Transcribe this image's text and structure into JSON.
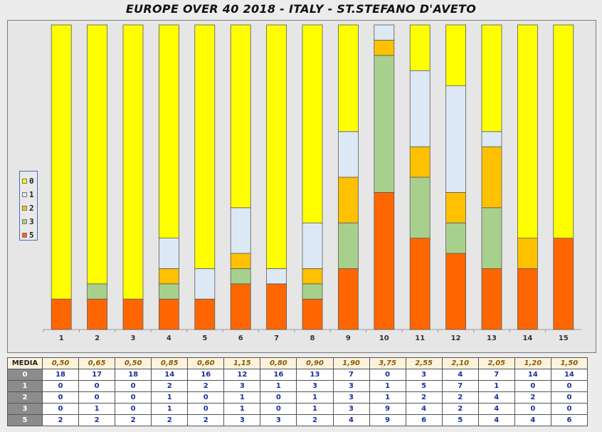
{
  "title": "EUROPE OVER 40 2018 - ITALY - ST.STEFANO D'AVETO",
  "chart_data": {
    "type": "bar",
    "stacked": true,
    "percent_stacked": true,
    "categories": [
      "1",
      "2",
      "3",
      "4",
      "5",
      "6",
      "7",
      "8",
      "9",
      "10",
      "11",
      "12",
      "13",
      "14",
      "15"
    ],
    "series": [
      {
        "name": "5",
        "color": "#ff6600",
        "values": [
          2,
          2,
          2,
          2,
          2,
          3,
          3,
          2,
          4,
          9,
          6,
          5,
          4,
          4,
          6
        ]
      },
      {
        "name": "3",
        "color": "#a8d08d",
        "values": [
          0,
          1,
          0,
          1,
          0,
          1,
          0,
          1,
          3,
          9,
          4,
          2,
          4,
          0,
          0
        ]
      },
      {
        "name": "2",
        "color": "#ffc000",
        "values": [
          0,
          0,
          0,
          1,
          0,
          1,
          0,
          1,
          3,
          1,
          2,
          2,
          4,
          2,
          0
        ]
      },
      {
        "name": "1",
        "color": "#dde8f5",
        "values": [
          0,
          0,
          0,
          2,
          2,
          3,
          1,
          3,
          3,
          1,
          5,
          7,
          1,
          0,
          0
        ]
      },
      {
        "name": "0",
        "color": "#ffff00",
        "values": [
          18,
          17,
          18,
          14,
          16,
          12,
          16,
          13,
          7,
          0,
          3,
          4,
          7,
          14,
          14
        ]
      }
    ],
    "legend": {
      "position": "left",
      "order": [
        "0",
        "1",
        "2",
        "3",
        "5"
      ]
    },
    "grid": false
  },
  "table": {
    "media_label": "MEDIA",
    "media": [
      "0,50",
      "0,65",
      "0,50",
      "0,85",
      "0,60",
      "1,15",
      "0,80",
      "0,90",
      "1,90",
      "3,75",
      "2,55",
      "2,10",
      "2,05",
      "1,20",
      "1,50"
    ],
    "rows": [
      {
        "label": "0",
        "values": [
          "18",
          "17",
          "18",
          "14",
          "16",
          "12",
          "16",
          "13",
          "7",
          "0",
          "3",
          "4",
          "7",
          "14",
          "14"
        ]
      },
      {
        "label": "1",
        "values": [
          "0",
          "0",
          "0",
          "2",
          "2",
          "3",
          "1",
          "3",
          "3",
          "1",
          "5",
          "7",
          "1",
          "0",
          "0"
        ]
      },
      {
        "label": "2",
        "values": [
          "0",
          "0",
          "0",
          "1",
          "0",
          "1",
          "0",
          "1",
          "3",
          "1",
          "2",
          "2",
          "4",
          "2",
          "0"
        ]
      },
      {
        "label": "3",
        "values": [
          "0",
          "1",
          "0",
          "1",
          "0",
          "1",
          "0",
          "1",
          "3",
          "9",
          "4",
          "2",
          "4",
          "0",
          "0"
        ]
      },
      {
        "label": "5",
        "values": [
          "2",
          "2",
          "2",
          "2",
          "2",
          "3",
          "3",
          "2",
          "4",
          "9",
          "6",
          "5",
          "4",
          "4",
          "6"
        ]
      }
    ]
  }
}
